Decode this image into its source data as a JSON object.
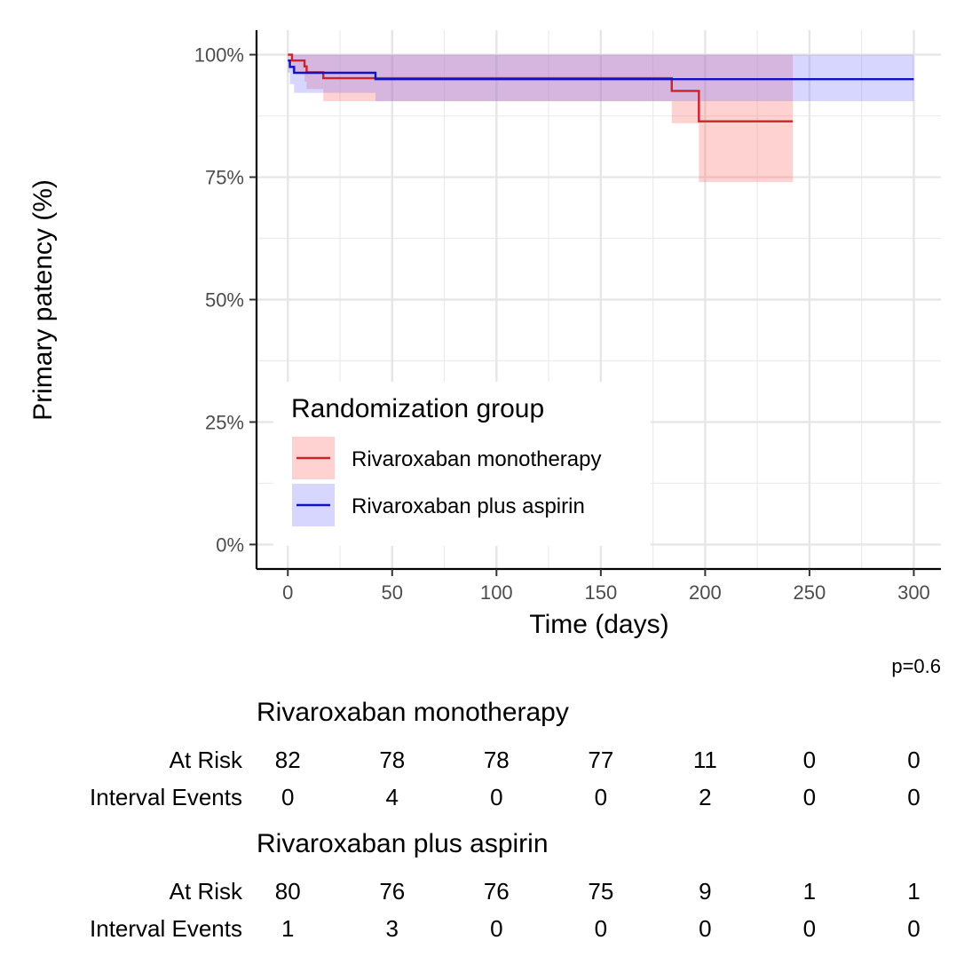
{
  "chart_data": {
    "type": "line",
    "subtype": "kaplan-meier",
    "xlabel": "Time (days)",
    "ylabel": "Primary patency (%)",
    "xlim": [
      -15,
      313
    ],
    "ylim": [
      -0.05,
      1.05
    ],
    "x_ticks": [
      0,
      50,
      100,
      150,
      200,
      250,
      300
    ],
    "y_ticks": [
      0,
      0.25,
      0.5,
      0.75,
      1.0
    ],
    "y_tick_labels": [
      "0%",
      "25%",
      "50%",
      "75%",
      "100%"
    ],
    "grid": true,
    "legend_title": "Randomization group",
    "legend_position": "bottom-left",
    "p_value": "p=0.6",
    "series": [
      {
        "name": "Rivaroxaban monotherapy",
        "color": "#cc2229",
        "band_color": "#ff6b6b",
        "steps": [
          [
            0,
            1.0
          ],
          [
            2,
            0.988
          ],
          [
            8,
            0.976
          ],
          [
            9,
            0.964
          ],
          [
            17,
            0.952
          ],
          [
            184,
            0.926
          ],
          [
            197,
            0.864
          ],
          [
            242,
            0.864
          ]
        ],
        "band": [
          [
            0,
            1.0,
            1.0
          ],
          [
            2,
            0.965,
            1.0
          ],
          [
            8,
            0.945,
            1.0
          ],
          [
            9,
            0.93,
            1.0
          ],
          [
            17,
            0.905,
            1.0
          ],
          [
            42,
            0.905,
            1.0
          ],
          [
            184,
            0.86,
            1.0
          ],
          [
            197,
            0.74,
            1.0
          ],
          [
            242,
            0.74,
            1.0
          ]
        ]
      },
      {
        "name": "Rivaroxaban plus aspirin",
        "color": "#1111cc",
        "band_color": "#7777ff",
        "steps": [
          [
            0,
            0.988
          ],
          [
            1,
            0.975
          ],
          [
            3,
            0.963
          ],
          [
            42,
            0.95
          ],
          [
            300,
            0.95
          ]
        ],
        "band": [
          [
            0,
            0.963,
            1.0
          ],
          [
            1,
            0.94,
            1.0
          ],
          [
            3,
            0.922,
            1.0
          ],
          [
            42,
            0.905,
            1.0
          ],
          [
            300,
            0.905,
            1.0
          ]
        ]
      }
    ]
  },
  "risk_table": {
    "groups": [
      {
        "title": "Rivaroxaban monotherapy",
        "rows": [
          {
            "label": "At Risk",
            "values": [
              "82",
              "78",
              "78",
              "77",
              "11",
              "0",
              "0"
            ]
          },
          {
            "label": "Interval Events",
            "values": [
              "0",
              "4",
              "0",
              "0",
              "2",
              "0",
              "0"
            ]
          }
        ]
      },
      {
        "title": "Rivaroxaban plus aspirin",
        "rows": [
          {
            "label": "At Risk",
            "values": [
              "80",
              "76",
              "76",
              "75",
              "9",
              "1",
              "1"
            ]
          },
          {
            "label": "Interval Events",
            "values": [
              "1",
              "3",
              "0",
              "0",
              "0",
              "0",
              "0"
            ]
          }
        ]
      }
    ]
  }
}
